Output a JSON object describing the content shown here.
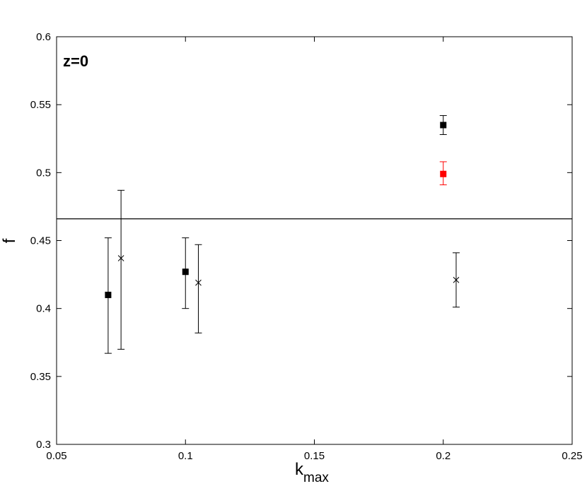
{
  "chart_data": {
    "type": "scatter",
    "title": "",
    "annotation": "z=0",
    "xlabel": "k",
    "xlabel_sub": "max",
    "ylabel": "f",
    "xlim": [
      0.05,
      0.25
    ],
    "ylim": [
      0.3,
      0.6
    ],
    "xticks": [
      "0.05",
      "0.1",
      "0.15",
      "0.2",
      "0.25"
    ],
    "yticks": [
      "0.3",
      "0.35",
      "0.4",
      "0.45",
      "0.5",
      "0.55",
      "0.6"
    ],
    "grid": false,
    "reference_line": {
      "y": 0.466,
      "color": "#000000"
    },
    "series": [
      {
        "marker": "square",
        "color": "#000000",
        "points": [
          {
            "x": 0.07,
            "y": 0.41,
            "err_low": 0.043,
            "err_high": 0.042
          },
          {
            "x": 0.1,
            "y": 0.427,
            "err_low": 0.027,
            "err_high": 0.025
          },
          {
            "x": 0.2,
            "y": 0.535,
            "err_low": 0.007,
            "err_high": 0.007
          }
        ]
      },
      {
        "marker": "square",
        "color": "#ff0000",
        "points": [
          {
            "x": 0.2,
            "y": 0.499,
            "err_low": 0.008,
            "err_high": 0.009
          }
        ]
      },
      {
        "marker": "cross",
        "color": "#000000",
        "points": [
          {
            "x": 0.075,
            "y": 0.437,
            "err_low": 0.067,
            "err_high": 0.05
          },
          {
            "x": 0.105,
            "y": 0.419,
            "err_low": 0.037,
            "err_high": 0.028
          },
          {
            "x": 0.205,
            "y": 0.421,
            "err_low": 0.02,
            "err_high": 0.02
          }
        ]
      }
    ]
  }
}
